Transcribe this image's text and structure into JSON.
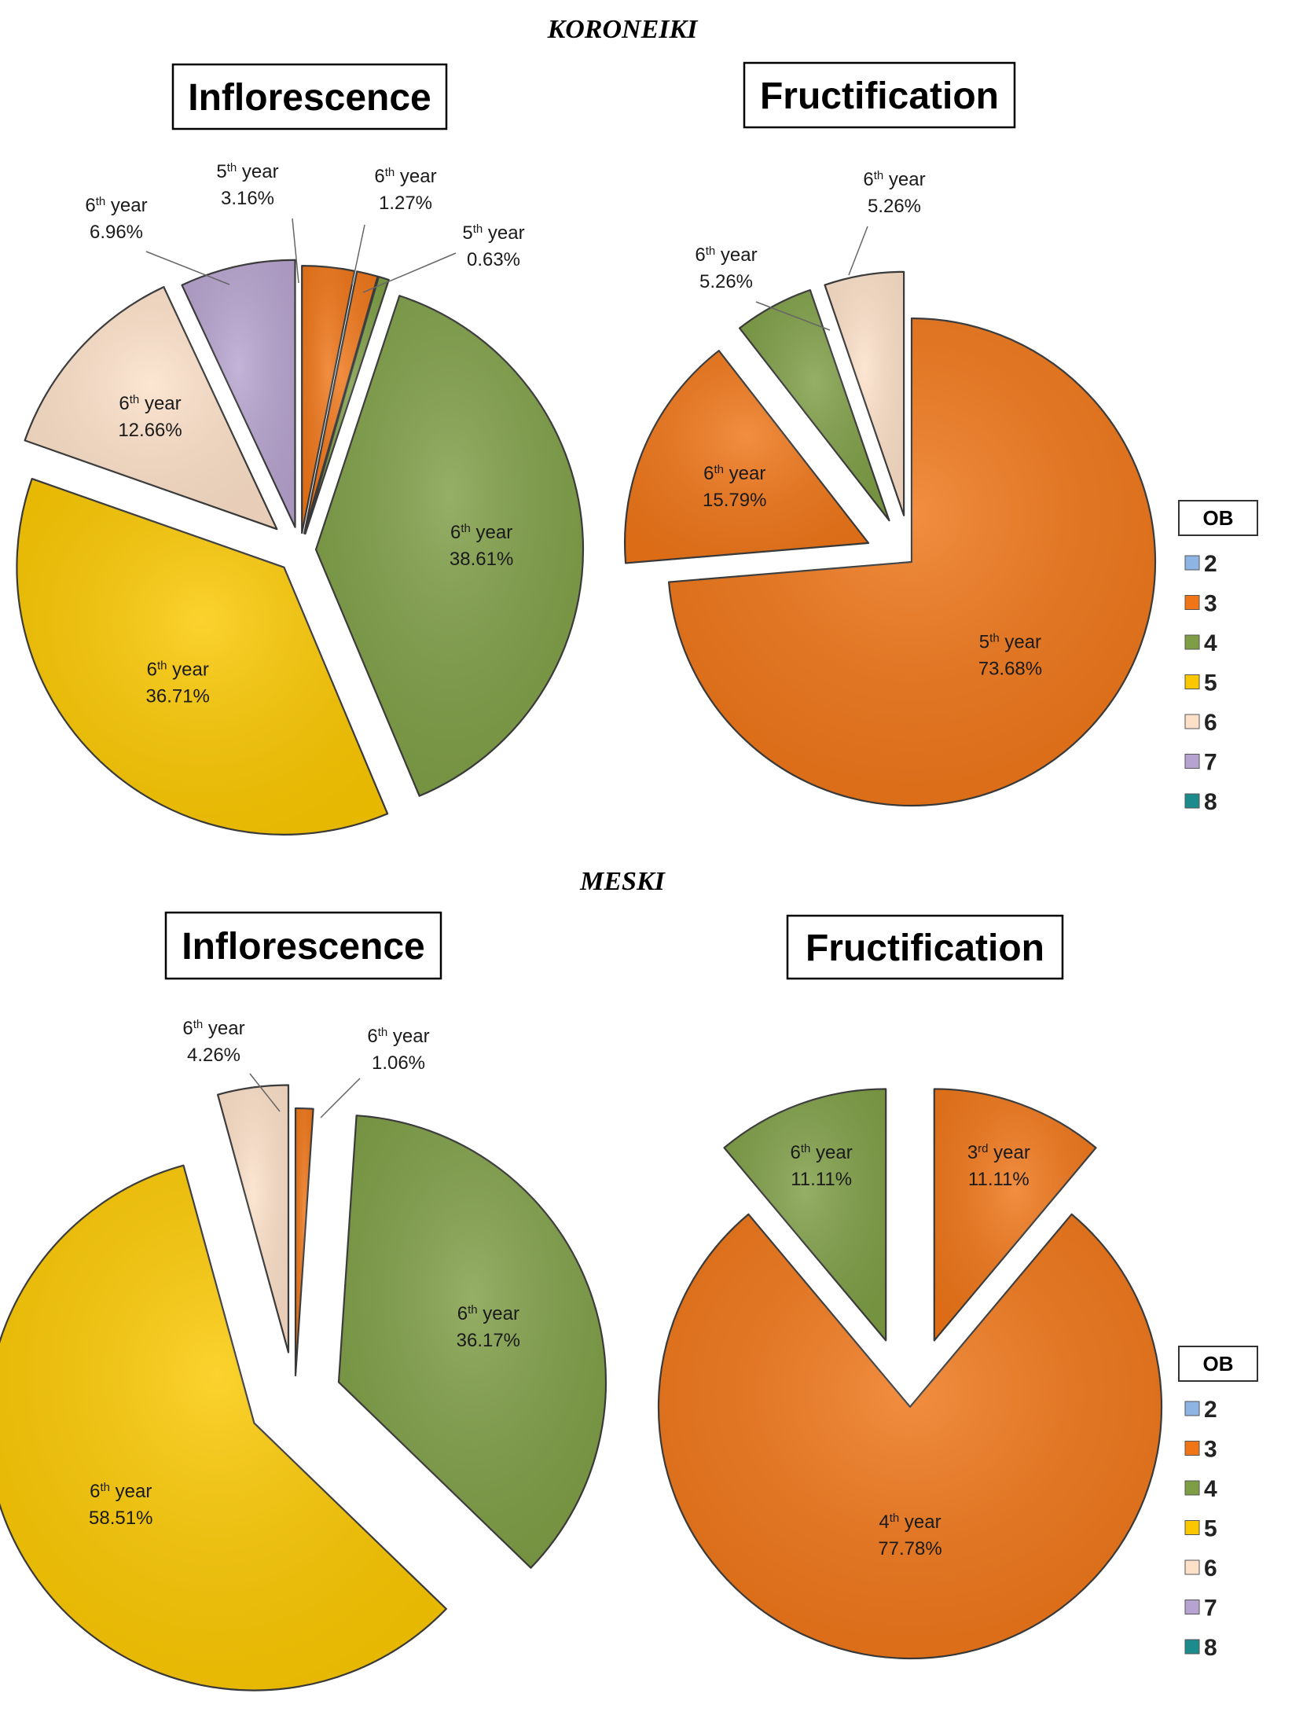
{
  "colors": {
    "2": "#8db4e2",
    "3": "#ef7517",
    "4": "#7e9e45",
    "5": "#fbc800",
    "6": "#fce0c8",
    "7": "#b7a3cf",
    "8": "#1b8b8b"
  },
  "chart_data": [
    {
      "id": "koroneiki-inflorescence",
      "type": "pie",
      "title": "Inflorescence",
      "section": "KORONEIKI",
      "slices": [
        {
          "ob": "3",
          "year": "5",
          "suffix": "th",
          "word": "year",
          "value": 3.16,
          "label": "3.16%"
        },
        {
          "ob": "3",
          "year": "6",
          "suffix": "th",
          "word": "year",
          "value": 1.27,
          "label": "1.27%"
        },
        {
          "ob": "4",
          "year": "5",
          "suffix": "th",
          "word": "year",
          "value": 0.63,
          "label": "0.63%"
        },
        {
          "ob": "4",
          "year": "6",
          "suffix": "th",
          "word": "year",
          "value": 38.61,
          "label": "38.61%"
        },
        {
          "ob": "5",
          "year": "6",
          "suffix": "th",
          "word": "year",
          "value": 36.71,
          "label": "36.71%"
        },
        {
          "ob": "6",
          "year": "6",
          "suffix": "th",
          "word": "year",
          "value": 12.66,
          "label": "12.66%"
        },
        {
          "ob": "7",
          "year": "6",
          "suffix": "th",
          "word": "year",
          "value": 6.96,
          "label": "6.96%"
        }
      ]
    },
    {
      "id": "koroneiki-fructification",
      "type": "pie",
      "title": "Fructification",
      "section": "KORONEIKI",
      "slices": [
        {
          "ob": "3",
          "year": "5",
          "suffix": "th",
          "word": "year",
          "value": 73.68,
          "label": "73.68%"
        },
        {
          "ob": "3",
          "year": "6",
          "suffix": "th",
          "word": "year",
          "value": 15.79,
          "label": "15.79%"
        },
        {
          "ob": "4",
          "year": "6",
          "suffix": "th",
          "word": "year",
          "value": 5.26,
          "label": "5.26%"
        },
        {
          "ob": "6",
          "year": "6",
          "suffix": "th",
          "word": "year",
          "value": 5.26,
          "label": "5.26%"
        }
      ]
    },
    {
      "id": "meski-inflorescence",
      "type": "pie",
      "title": "Inflorescence",
      "section": "MESKI",
      "slices": [
        {
          "ob": "3",
          "year": "6",
          "suffix": "th",
          "word": "year",
          "value": 1.06,
          "label": "1.06%"
        },
        {
          "ob": "4",
          "year": "6",
          "suffix": "th",
          "word": "year",
          "value": 36.17,
          "label": "36.17%"
        },
        {
          "ob": "5",
          "year": "6",
          "suffix": "th",
          "word": "year",
          "value": 58.51,
          "label": "58.51%"
        },
        {
          "ob": "6",
          "year": "6",
          "suffix": "th",
          "word": "year",
          "value": 4.26,
          "label": "4.26%"
        }
      ]
    },
    {
      "id": "meski-fructification",
      "type": "pie",
      "title": "Fructification",
      "section": "MESKI",
      "slices": [
        {
          "ob": "3",
          "year": "3",
          "suffix": "rd",
          "word": "year",
          "value": 11.11,
          "label": "11.11%"
        },
        {
          "ob": "3",
          "year": "4",
          "suffix": "th",
          "word": "year",
          "value": 77.78,
          "label": "77.78%"
        },
        {
          "ob": "4",
          "year": "6",
          "suffix": "th",
          "word": "year",
          "value": 11.11,
          "label": "11.11%"
        }
      ]
    }
  ],
  "sections": [
    "KORONEIKI",
    "MESKI"
  ],
  "legend": {
    "title": "OB",
    "items": [
      "2",
      "3",
      "4",
      "5",
      "6",
      "7",
      "8"
    ]
  }
}
